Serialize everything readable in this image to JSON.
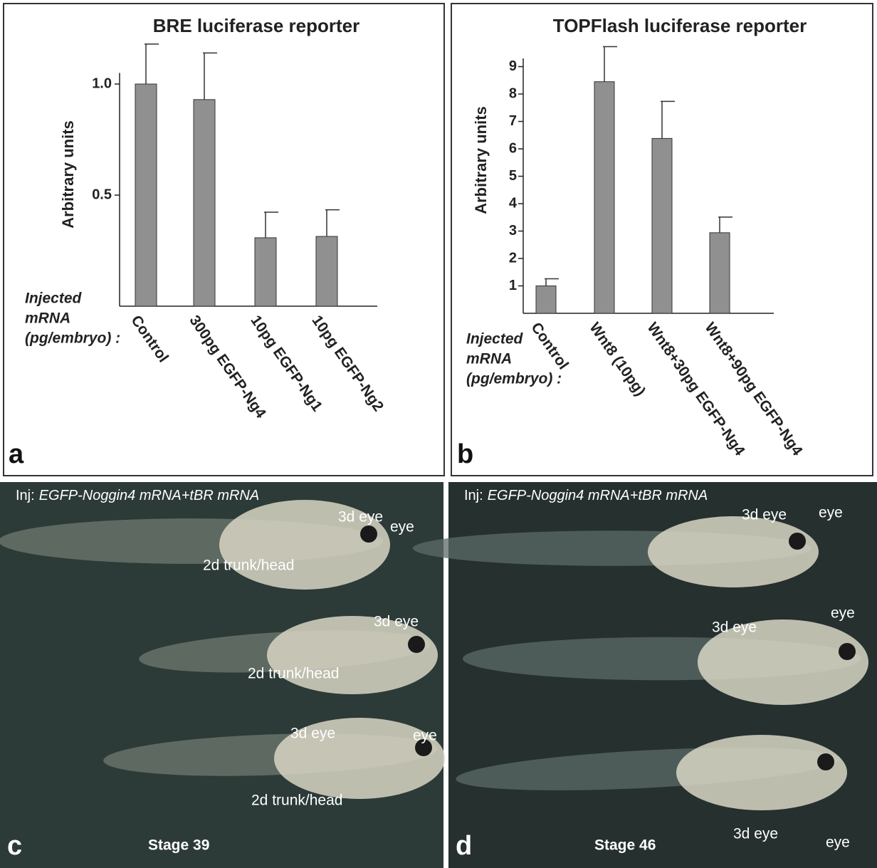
{
  "chart_data": [
    {
      "type": "bar",
      "title": "BRE luciferase reporter",
      "ylabel": "Arbitrary units",
      "xlabel": [
        "Injected",
        "mRNA",
        "(pg/embryo) :"
      ],
      "categories": [
        "Control",
        "300pg EGFP-Ng4",
        "10pg EGFP-Ng1",
        "10pg EGFP-Ng2"
      ],
      "values": [
        1.0,
        0.93,
        0.308,
        0.314
      ],
      "errors": [
        0.18,
        0.21,
        0.115,
        0.12
      ],
      "color": "#909090",
      "ylim": [
        0,
        1.05
      ],
      "yticks": [
        0.5,
        {
          "value": 1,
          "label": "1.0"
        }
      ],
      "panel": "a"
    },
    {
      "type": "bar",
      "title": "TOPFlash luciferase reporter",
      "ylabel": "Arbitrary units",
      "xlabel": [
        "Injected",
        "mRNA",
        "(pg/embryo) :"
      ],
      "categories": [
        "Control",
        "Wnt8 (10pg)",
        "Wnt8+30pg EGFP-Ng4",
        "Wnt8+90pg EGFP-Ng4"
      ],
      "values": [
        1.0,
        8.45,
        6.38,
        2.94
      ],
      "errors": [
        0.26,
        1.28,
        1.35,
        0.57
      ],
      "color": "#909090",
      "ylim": [
        0,
        9.3
      ],
      "yticks": [
        1,
        2,
        3,
        4,
        5,
        6,
        7,
        8,
        9
      ],
      "panel": "b"
    }
  ],
  "photos": [
    {
      "panel": "c",
      "caption": "Inj:",
      "caption_italic": "EGFP-Noggin4 mRNA+tBR mRNA",
      "stage": "Stage 39",
      "labels": [
        "3d eye",
        "eye",
        "2d trunk/head",
        "3d eye",
        "2d trunk/head",
        "3d eye",
        "eye",
        "2d trunk/head"
      ]
    },
    {
      "panel": "d",
      "caption": "Inj:",
      "caption_italic": "EGFP-Noggin4 mRNA+tBR mRNA",
      "stage": "Stage 46",
      "labels": [
        "3d eye",
        "eye",
        "3d eye",
        "eye",
        "3d eye",
        "eye"
      ]
    }
  ]
}
